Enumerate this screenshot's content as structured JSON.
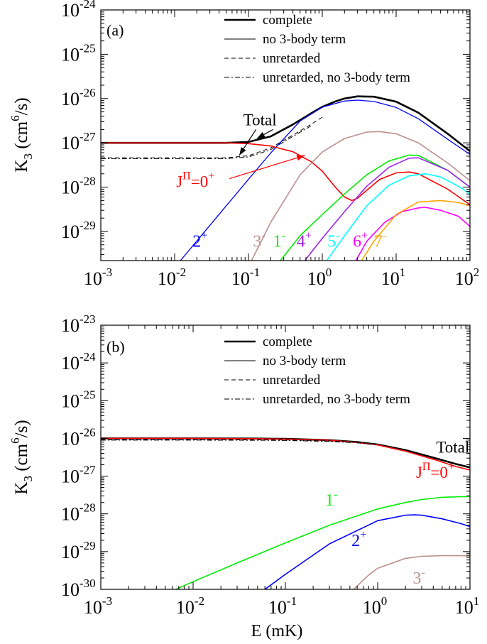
{
  "chart_data": [
    {
      "type": "line",
      "panel": "(a)",
      "xscale": "log",
      "yscale": "log",
      "xlim": [
        0.001,
        100
      ],
      "ylim": [
        2.2e-30,
        1e-24
      ],
      "xticks": [
        {
          "v": 0.001,
          "m": "10",
          "e": "-3"
        },
        {
          "v": 0.01,
          "m": "10",
          "e": "-2"
        },
        {
          "v": 0.1,
          "m": "10",
          "e": "-1"
        },
        {
          "v": 1,
          "m": "10",
          "e": "0"
        },
        {
          "v": 10,
          "m": "10",
          "e": "1"
        },
        {
          "v": 100,
          "m": "10",
          "e": "2"
        }
      ],
      "yticks": [
        {
          "v": 1e-29,
          "m": "10",
          "e": "-29"
        },
        {
          "v": 1e-28,
          "m": "10",
          "e": "-28"
        },
        {
          "v": 1e-27,
          "m": "10",
          "e": "-27"
        },
        {
          "v": 1e-26,
          "m": "10",
          "e": "-26"
        },
        {
          "v": 1e-25,
          "m": "10",
          "e": "-25"
        },
        {
          "v": 1e-24,
          "m": "10",
          "e": "-24"
        }
      ],
      "ylabel": {
        "main": "K",
        "sub": "3",
        "unit_pre": " (cm",
        "unit_sup": "6",
        "unit_post": "/s)"
      },
      "legend": {
        "placement": "top",
        "entries": [
          {
            "label": "complete",
            "style": "thick"
          },
          {
            "label": "no 3-body term",
            "style": "solid"
          },
          {
            "label": "unretarded",
            "style": "dashed"
          },
          {
            "label": "unretarded, no 3-body term",
            "style": "dashdot"
          }
        ]
      },
      "series": [
        {
          "color": "#000000",
          "width": 2.6,
          "dash": "",
          "x": [
            0.001,
            0.01,
            0.05,
            0.1,
            0.2,
            0.4,
            0.7,
            1,
            1.5,
            2,
            3,
            5,
            10,
            20,
            50,
            100
          ],
          "y": [
            1e-27,
            1e-27,
            1e-27,
            1.05e-27,
            1.4e-27,
            2.6e-27,
            4.6e-27,
            6.5e-27,
            8.6e-27,
            1e-26,
            1.12e-26,
            1.1e-26,
            8.5e-27,
            4.8e-27,
            1.6e-27,
            6.5e-28
          ]
        },
        {
          "color": "#0000ff",
          "width": 1.3,
          "dash": "",
          "x": [
            0.012,
            0.05,
            0.1,
            0.2,
            0.5,
            1,
            2,
            3,
            5,
            10,
            20,
            50,
            100
          ],
          "y": [
            2.2e-30,
            3.8e-29,
            1.5e-28,
            5.9e-28,
            3.1e-27,
            6.4e-27,
            8.8e-27,
            9.2e-27,
            8.6e-27,
            6.3e-27,
            3.5e-27,
            1.2e-27,
            5.5e-28
          ]
        },
        {
          "color": "#000000",
          "width": 1.0,
          "dash": "6,4",
          "x": [
            0.001,
            0.01,
            0.05,
            0.1,
            0.2,
            0.4,
            0.7,
            1
          ],
          "y": [
            4.6e-28,
            4.6e-28,
            4.6e-28,
            5.1e-28,
            7.7e-28,
            1.5e-27,
            2.6e-27,
            3.8e-27
          ]
        },
        {
          "color": "#000000",
          "width": 1.0,
          "dash": "7,3,2,3",
          "x": [
            0.001,
            0.01,
            0.05,
            0.1,
            0.2,
            0.4,
            0.7
          ],
          "y": [
            4.4e-28,
            4.4e-28,
            4.4e-28,
            4.8e-28,
            7e-28,
            1.4e-27,
            2.4e-27
          ]
        },
        {
          "color": "#ff0000",
          "width": 1.6,
          "dash": "",
          "x": [
            0.001,
            0.01,
            0.05,
            0.1,
            0.2,
            0.4,
            0.7,
            1,
            1.5,
            2,
            2.5,
            3,
            4,
            6,
            10,
            15,
            20,
            50,
            100
          ],
          "y": [
            1e-27,
            1e-27,
            1e-27,
            9.6e-28,
            8.5e-28,
            6.3e-28,
            3.8e-28,
            2.3e-28,
            1e-28,
            6e-29,
            5e-29,
            5.6e-29,
            8.5e-29,
            1.5e-28,
            2.1e-28,
            2.2e-28,
            2e-28,
            9e-29,
            4e-29
          ]
        },
        {
          "color": "#bc8f8f",
          "width": 1.6,
          "dash": "",
          "x": [
            0.11,
            0.2,
            0.5,
            1,
            2,
            4,
            6,
            10,
            20,
            50,
            100
          ],
          "y": [
            2.2e-30,
            1.6e-29,
            1.9e-28,
            6.2e-28,
            1.25e-27,
            1.75e-27,
            1.8e-27,
            1.6e-27,
            1e-27,
            3.5e-28,
            1.4e-28
          ]
        },
        {
          "color": "#00ee00",
          "width": 1.6,
          "dash": "",
          "x": [
            0.27,
            0.5,
            1,
            2,
            4,
            8,
            15,
            20,
            50,
            100
          ],
          "y": [
            2.2e-30,
            8e-30,
            2.4e-29,
            7e-29,
            1.9e-28,
            3.9e-28,
            5.3e-28,
            5.2e-28,
            2.4e-28,
            1e-28
          ]
        },
        {
          "color": "#a020f0",
          "width": 1.6,
          "dash": "",
          "x": [
            0.58,
            1,
            2,
            4,
            8,
            15,
            20,
            50,
            100
          ],
          "y": [
            2.2e-30,
            7e-30,
            2.8e-29,
            1.05e-28,
            2.8e-28,
            4.5e-28,
            4.6e-28,
            2.4e-28,
            1e-28
          ]
        },
        {
          "color": "#00ffff",
          "width": 1.6,
          "dash": "",
          "x": [
            1.15,
            2,
            4,
            8,
            15,
            25,
            40,
            70,
            100
          ],
          "y": [
            2.2e-30,
            8e-30,
            3.8e-29,
            1.1e-28,
            1.8e-28,
            2e-28,
            1.7e-28,
            1.05e-28,
            7e-29
          ]
        },
        {
          "color": "#ff00ff",
          "width": 1.6,
          "dash": "",
          "x": [
            2.85,
            4,
            7,
            12,
            20,
            25,
            40,
            70,
            100
          ],
          "y": [
            2.2e-30,
            6e-30,
            1.6e-29,
            2.8e-29,
            3.4e-29,
            3.5e-29,
            3e-29,
            2.2e-29,
            1.3e-29
          ]
        },
        {
          "color": "#ffa500",
          "width": 1.6,
          "dash": "",
          "x": [
            3.4,
            5,
            10,
            20,
            40,
            70,
            100
          ],
          "y": [
            2.2e-30,
            6e-30,
            2.4e-29,
            4.6e-29,
            5e-29,
            4.5e-29,
            3.8e-29
          ]
        }
      ],
      "labels": [
        {
          "text": "2",
          "sup": "+",
          "color": "#0000ff",
          "x": 0.0175,
          "y": 4.5e-30
        },
        {
          "text": "3",
          "sup": "-",
          "color": "#bc8f8f",
          "x": 0.115,
          "y": 4.5e-30
        },
        {
          "text": "1",
          "sup": "-",
          "color": "#00ee00",
          "x": 0.215,
          "y": 4.5e-30
        },
        {
          "text": "4",
          "sup": "+",
          "color": "#a020f0",
          "x": 0.45,
          "y": 4.5e-30
        },
        {
          "text": "5",
          "sup": "-",
          "color": "#00ffff",
          "x": 1.17,
          "y": 4.5e-30
        },
        {
          "text": "6",
          "sup": "+",
          "color": "#ff00ff",
          "x": 2.6,
          "y": 4.5e-30
        },
        {
          "text": "7",
          "sup": "-",
          "color": "#ffa500",
          "x": 5.0,
          "y": 4.5e-30
        }
      ],
      "annotations": [
        {
          "text": "Total",
          "color": "#000000",
          "x": 0.085,
          "y": 2.5e-27,
          "arrows": [
            {
              "tx": 0.13,
              "ty": 1.25e-27,
              "tl": 0.02
            },
            {
              "tx": 0.075,
              "ty": 5.2e-28,
              "tl": -0.02
            }
          ]
        },
        {
          "text": "J",
          "sup": "Π",
          "post": "=0",
          "post_sup": "+",
          "color": "#ff0000",
          "x": 0.0105,
          "y": 1e-28,
          "arrows": [
            {
              "tx": 0.58,
              "ty": 5.2e-28,
              "tl": 0
            }
          ]
        }
      ]
    },
    {
      "type": "line",
      "panel": "(b)",
      "xscale": "log",
      "yscale": "log",
      "xlim": [
        0.001,
        10
      ],
      "ylim": [
        1e-30,
        1e-23
      ],
      "xticks": [
        {
          "v": 0.001,
          "m": "10",
          "e": "-3"
        },
        {
          "v": 0.01,
          "m": "10",
          "e": "-2"
        },
        {
          "v": 0.1,
          "m": "10",
          "e": "-1"
        },
        {
          "v": 1,
          "m": "10",
          "e": "0"
        },
        {
          "v": 10,
          "m": "10",
          "e": "1"
        }
      ],
      "yticks": [
        {
          "v": 1e-30,
          "m": "10",
          "e": "-30"
        },
        {
          "v": 1e-29,
          "m": "10",
          "e": "-29"
        },
        {
          "v": 1e-28,
          "m": "10",
          "e": "-28"
        },
        {
          "v": 1e-27,
          "m": "10",
          "e": "-27"
        },
        {
          "v": 1e-26,
          "m": "10",
          "e": "-26"
        },
        {
          "v": 1e-25,
          "m": "10",
          "e": "-25"
        },
        {
          "v": 1e-24,
          "m": "10",
          "e": "-24"
        },
        {
          "v": 1e-23,
          "m": "10",
          "e": "-23"
        }
      ],
      "ylabel": {
        "main": "K",
        "sub": "3",
        "unit_pre": " (cm",
        "unit_sup": "6",
        "unit_post": "/s)"
      },
      "xlabel": "E (mK)",
      "legend": {
        "placement": "top",
        "entries": [
          {
            "label": "complete",
            "style": "thick"
          },
          {
            "label": "no 3-body term",
            "style": "solid"
          },
          {
            "label": "unretarded",
            "style": "dashed"
          },
          {
            "label": "unretarded, no 3-body term",
            "style": "dashdot"
          }
        ]
      },
      "series": [
        {
          "color": "#000000",
          "width": 2.6,
          "dash": "",
          "x": [
            0.001,
            0.01,
            0.05,
            0.1,
            0.3,
            0.6,
            1,
            2,
            4,
            7,
            10
          ],
          "y": [
            1e-26,
            1e-26,
            9.9e-27,
            9.7e-27,
            9e-27,
            8e-27,
            6.9e-27,
            4.9e-27,
            3.1e-27,
            2.1e-27,
            1.7e-27
          ]
        },
        {
          "color": "#ff0000",
          "width": 1.6,
          "dash": "",
          "x": [
            0.001,
            0.01,
            0.05,
            0.1,
            0.3,
            0.6,
            1,
            2,
            4,
            7,
            10
          ],
          "y": [
            1e-26,
            1e-26,
            9.8e-27,
            9.6e-27,
            8.9e-27,
            7.8e-27,
            6.7e-27,
            4.6e-27,
            2.8e-27,
            1.8e-27,
            1.45e-27
          ]
        },
        {
          "color": "#000000",
          "width": 1.0,
          "dash": "6,4",
          "x": [
            0.001,
            0.01,
            0.05,
            0.1,
            0.3,
            0.6,
            1
          ],
          "y": [
            9.3e-27,
            9.3e-27,
            9.2e-27,
            9.1e-27,
            8.6e-27,
            7.9e-27,
            7.1e-27
          ]
        },
        {
          "color": "#000000",
          "width": 1.0,
          "dash": "7,3,2,3",
          "x": [
            0.001,
            0.01,
            0.05,
            0.1,
            0.3,
            0.6,
            1
          ],
          "y": [
            9e-27,
            9e-27,
            8.9e-27,
            8.8e-27,
            8.3e-27,
            7.6e-27,
            6.8e-27
          ]
        },
        {
          "color": "#00ee00",
          "width": 1.6,
          "dash": "",
          "x": [
            0.0065,
            0.01,
            0.03,
            0.1,
            0.3,
            1,
            2,
            3,
            5,
            8,
            10
          ],
          "y": [
            1e-30,
            1.6e-30,
            5e-30,
            1.7e-29,
            5e-29,
            1.35e-28,
            2e-28,
            2.4e-28,
            2.75e-28,
            2.85e-28,
            2.85e-28
          ]
        },
        {
          "color": "#0000ff",
          "width": 1.6,
          "dash": "",
          "x": [
            0.06,
            0.1,
            0.3,
            1,
            2,
            2.5,
            3,
            5,
            8,
            10
          ],
          "y": [
            1e-30,
            2.5e-30,
            1.6e-29,
            6.6e-29,
            9.2e-29,
            9.4e-29,
            9.2e-29,
            7.4e-29,
            5.5e-29,
            4.6e-29
          ]
        },
        {
          "color": "#bc8f8f",
          "width": 1.6,
          "dash": "",
          "x": [
            0.55,
            0.8,
            1,
            2,
            3,
            5,
            8,
            10
          ],
          "y": [
            1e-30,
            2.4e-30,
            3.6e-30,
            6.6e-30,
            7.5e-30,
            7.8e-30,
            7.8e-30,
            7.7e-30
          ]
        }
      ],
      "labels": [
        {
          "text": "1",
          "sup": "-",
          "color": "#00ee00",
          "x": 0.27,
          "y": 1.65e-28
        },
        {
          "text": "2",
          "sup": "+",
          "color": "#0000ff",
          "x": 0.52,
          "y": 1.4e-29
        },
        {
          "text": "3",
          "sup": "-",
          "color": "#bc8f8f",
          "x": 2.4,
          "y": 1.4e-30
        }
      ],
      "annotations": [
        {
          "text": "Total",
          "color": "#000000",
          "x": 4.3,
          "y": 4.2e-27,
          "arrows": []
        },
        {
          "text": "J",
          "sup": "Π",
          "post": "=0",
          "post_sup": "+",
          "color": "#ff0000",
          "x": 2.6,
          "y": 9e-28,
          "arrows": []
        }
      ]
    }
  ]
}
